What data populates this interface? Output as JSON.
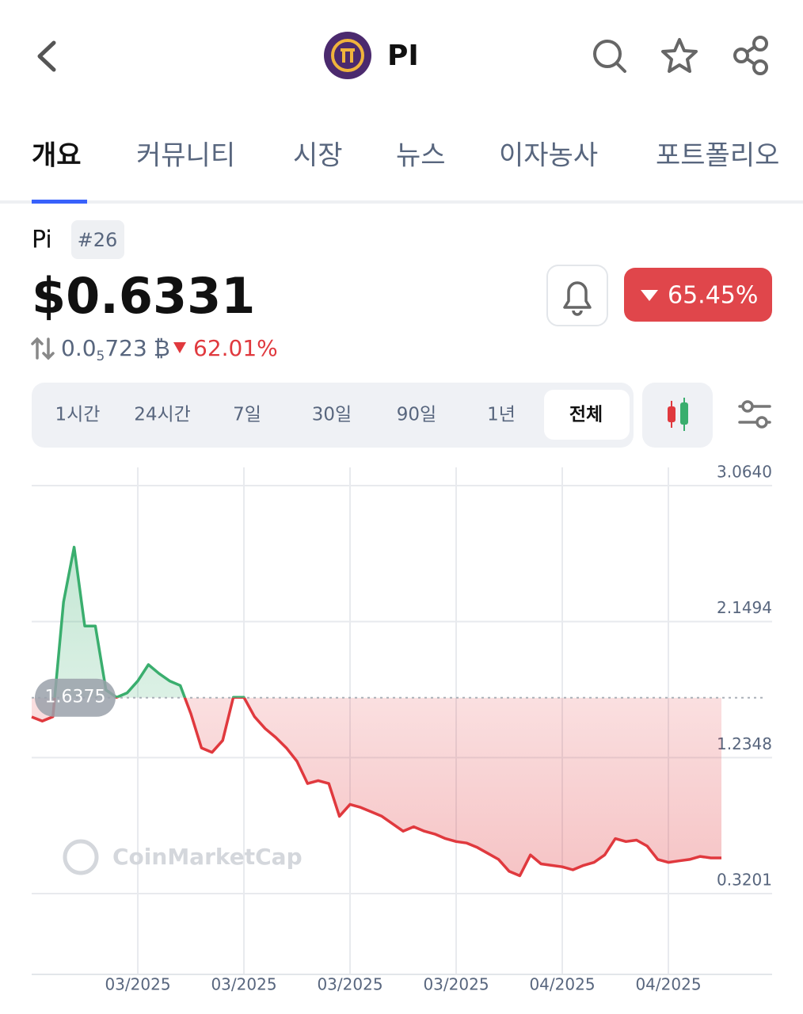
{
  "header": {
    "title": "PI"
  },
  "tabs": [
    "개요",
    "커뮤니티",
    "시장",
    "뉴스",
    "이자농사",
    "포트폴리오"
  ],
  "coin": {
    "name": "Pi",
    "rank": "#26",
    "price": "$0.6331",
    "change": "65.45%",
    "btc_price": {
      "lead": "0.0",
      "zeros": "5",
      "digits": "723",
      "symbol": "₿"
    },
    "btc_change": "62.01%"
  },
  "ranges": [
    "1시간",
    "24시간",
    "7일",
    "30일",
    "90일",
    "1년",
    "전체"
  ],
  "chart_data": {
    "type": "line",
    "values": [
      1.508,
      1.48,
      1.51,
      2.28,
      2.65,
      2.12,
      2.12,
      1.69,
      1.64,
      1.67,
      1.75,
      1.86,
      1.8,
      1.75,
      1.72,
      1.53,
      1.3,
      1.27,
      1.35,
      1.64,
      1.64,
      1.51,
      1.43,
      1.37,
      1.3,
      1.21,
      1.06,
      1.08,
      1.06,
      0.84,
      0.92,
      0.9,
      0.87,
      0.84,
      0.79,
      0.74,
      0.77,
      0.74,
      0.72,
      0.69,
      0.67,
      0.66,
      0.63,
      0.59,
      0.55,
      0.47,
      0.44,
      0.58,
      0.52,
      0.51,
      0.5,
      0.48,
      0.51,
      0.53,
      0.58,
      0.69,
      0.67,
      0.68,
      0.64,
      0.55,
      0.53,
      0.54,
      0.55,
      0.57,
      0.56,
      0.56
    ],
    "categories": [
      null,
      null,
      null,
      null,
      null,
      null,
      null,
      null,
      null,
      null,
      "03/2025",
      null,
      null,
      null,
      null,
      null,
      null,
      null,
      null,
      null,
      "03/2025",
      null,
      null,
      null,
      null,
      null,
      null,
      null,
      null,
      null,
      "03/2025",
      null,
      null,
      null,
      null,
      null,
      null,
      null,
      null,
      null,
      "03/2025",
      null,
      null,
      null,
      null,
      null,
      null,
      null,
      null,
      null,
      "04/2025",
      null,
      null,
      null,
      null,
      null,
      null,
      null,
      null,
      null,
      "04/2025",
      null,
      null,
      null,
      null,
      null
    ],
    "ylim": [
      -0.2233,
      3.1865
    ],
    "yticks": [
      {
        "value": 3.064,
        "label": "3.0640"
      },
      2.1494,
      1.2348,
      0.3201
    ],
    "baseline": 1.6375,
    "up_color": "#3aae6e",
    "down_color": "#e0393e",
    "grid": true,
    "watermark": "CoinMarketCap"
  }
}
